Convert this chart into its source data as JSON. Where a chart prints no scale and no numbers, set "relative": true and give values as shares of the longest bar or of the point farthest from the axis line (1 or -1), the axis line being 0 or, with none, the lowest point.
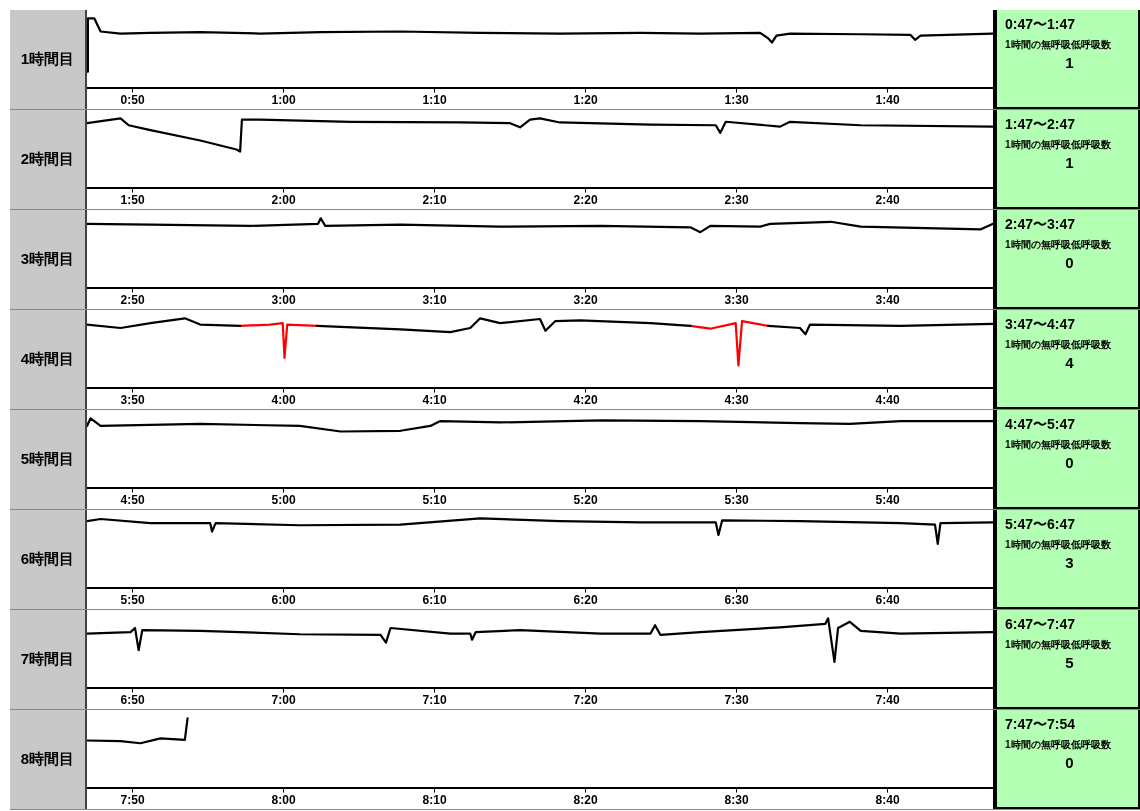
{
  "chart_data": [
    {
      "type": "line",
      "ylabel": "1時間目",
      "relative": true,
      "marker": "none",
      "xlim": [
        0.783,
        1.783
      ],
      "xticks": [
        {
          "value": 0.8333,
          "label": "0:50"
        },
        {
          "value": 1,
          "label": "1:00"
        },
        {
          "value": 1.1667,
          "label": "1:10"
        },
        {
          "value": 1.3333,
          "label": "1:20"
        },
        {
          "value": 1.5,
          "label": "1:30"
        },
        {
          "value": 1.6667,
          "label": "1:40"
        }
      ],
      "x": [
        0.783,
        0.784,
        0.791,
        0.798,
        0.82,
        0.853,
        0.908,
        0.974,
        1.041,
        1.129,
        1.217,
        1.305,
        1.394,
        1.46,
        1.526,
        1.535,
        1.539,
        1.544,
        1.559,
        1.637,
        1.692,
        1.697,
        1.703,
        1.783
      ],
      "series": [
        {
          "color": "#000000",
          "values": [
            0.23,
            1.0,
            1.0,
            0.81,
            0.78,
            0.79,
            0.8,
            0.78,
            0.8,
            0.81,
            0.79,
            0.78,
            0.79,
            0.78,
            0.79,
            0.71,
            0.65,
            0.75,
            0.78,
            0.77,
            0.76,
            0.69,
            0.75,
            0.78
          ]
        }
      ],
      "annotations": [
        "0:47〜1:47",
        "1時間の無呼吸低呼吸数",
        "1"
      ]
    },
    {
      "type": "line",
      "ylabel": "2時間目",
      "relative": true,
      "marker": "none",
      "xlim": [
        1.783,
        2.783
      ],
      "xticks": [
        {
          "value": 1.8333,
          "label": "1:50"
        },
        {
          "value": 2,
          "label": "2:00"
        },
        {
          "value": 2.1667,
          "label": "2:10"
        },
        {
          "value": 2.3333,
          "label": "2:20"
        },
        {
          "value": 2.5,
          "label": "2:30"
        },
        {
          "value": 2.6667,
          "label": "2:40"
        }
      ],
      "x": [
        1.783,
        1.82,
        1.829,
        1.853,
        1.908,
        1.948,
        1.952,
        1.954,
        1.974,
        2.074,
        2.195,
        2.25,
        2.261,
        2.272,
        2.283,
        2.305,
        2.405,
        2.477,
        2.482,
        2.488,
        2.548,
        2.559,
        2.637,
        2.783
      ],
      "series": [
        {
          "color": "#000000",
          "values": [
            0.93,
            1.0,
            0.9,
            0.83,
            0.68,
            0.55,
            0.52,
            0.98,
            0.98,
            0.95,
            0.94,
            0.93,
            0.87,
            0.98,
            1.0,
            0.94,
            0.91,
            0.9,
            0.79,
            0.95,
            0.88,
            0.95,
            0.9,
            0.88
          ]
        }
      ],
      "annotations": [
        "1:47〜2:47",
        "1時間の無呼吸低呼吸数",
        "1"
      ]
    },
    {
      "type": "line",
      "ylabel": "3時間目",
      "relative": true,
      "marker": "none",
      "xlim": [
        2.783,
        3.783
      ],
      "xticks": [
        {
          "value": 2.8333,
          "label": "2:50"
        },
        {
          "value": 3,
          "label": "3:00"
        },
        {
          "value": 3.1667,
          "label": "3:10"
        },
        {
          "value": 3.3333,
          "label": "3:20"
        },
        {
          "value": 3.5,
          "label": "3:30"
        },
        {
          "value": 3.6667,
          "label": "3:40"
        }
      ],
      "x": [
        2.783,
        2.853,
        2.963,
        3.038,
        3.041,
        3.046,
        3.129,
        3.239,
        3.35,
        3.449,
        3.46,
        3.471,
        3.526,
        3.537,
        3.604,
        3.637,
        3.769,
        3.783
      ],
      "series": [
        {
          "color": "#000000",
          "values": [
            0.92,
            0.91,
            0.89,
            0.92,
            1.0,
            0.89,
            0.91,
            0.88,
            0.89,
            0.87,
            0.8,
            0.89,
            0.88,
            0.92,
            0.95,
            0.88,
            0.84,
            0.92
          ]
        }
      ],
      "annotations": [
        "2:47〜3:47",
        "1時間の無呼吸低呼吸数",
        "0"
      ]
    },
    {
      "type": "line",
      "ylabel": "4時間目",
      "relative": true,
      "marker": "none",
      "xlim": [
        3.783,
        4.783
      ],
      "xticks": [
        {
          "value": 3.8333,
          "label": "3:50"
        },
        {
          "value": 4,
          "label": "4:00"
        },
        {
          "value": 4.1667,
          "label": "4:10"
        },
        {
          "value": 4.3333,
          "label": "4:20"
        },
        {
          "value": 4.5,
          "label": "4:30"
        },
        {
          "value": 4.6667,
          "label": "4:40"
        }
      ],
      "x": [
        3.783,
        3.82,
        3.853,
        3.891,
        3.908,
        3.952,
        3.985,
        3.999,
        4.001,
        4.004,
        4.037,
        4.129,
        4.184,
        4.206,
        4.217,
        4.239,
        4.283,
        4.289,
        4.3,
        4.327,
        4.405,
        4.449,
        4.471,
        4.499,
        4.502,
        4.506,
        4.535,
        4.57,
        4.576,
        4.581,
        4.681,
        4.783
      ],
      "series": [
        {
          "color": "#000000",
          "values": [
            0.91,
            0.86,
            0.93,
            1.0,
            0.91,
            0.89,
            null,
            null,
            null,
            null,
            0.89,
            0.84,
            0.8,
            0.86,
            1.0,
            0.93,
            0.99,
            0.82,
            0.96,
            0.97,
            0.93,
            0.89,
            null,
            null,
            null,
            null,
            0.89,
            0.86,
            0.77,
            0.91,
            0.89,
            0.92
          ]
        },
        {
          "color": "#ff0000",
          "values": [
            null,
            null,
            null,
            null,
            null,
            0.89,
            0.91,
            0.93,
            0.43,
            0.91,
            0.89,
            null,
            null,
            null,
            null,
            null,
            null,
            null,
            null,
            null,
            null,
            0.89,
            0.85,
            0.93,
            0.32,
            0.96,
            0.89,
            null,
            null,
            null,
            null,
            null
          ]
        }
      ],
      "annotations": [
        "3:47〜4:47",
        "1時間の無呼吸低呼吸数",
        "4"
      ]
    },
    {
      "type": "line",
      "ylabel": "5時間目",
      "relative": true,
      "marker": "none",
      "xlim": [
        4.783,
        5.783
      ],
      "xticks": [
        {
          "value": 4.8333,
          "label": "4:50"
        },
        {
          "value": 5,
          "label": "5:00"
        },
        {
          "value": 5.1667,
          "label": "5:10"
        },
        {
          "value": 5.3333,
          "label": "5:20"
        },
        {
          "value": 5.5,
          "label": "5:30"
        },
        {
          "value": 5.6667,
          "label": "5:40"
        }
      ],
      "x": [
        4.783,
        4.787,
        4.798,
        4.908,
        5.018,
        5.063,
        5.129,
        5.162,
        5.173,
        5.239,
        5.35,
        5.46,
        5.57,
        5.625,
        5.681,
        5.783
      ],
      "series": [
        {
          "color": "#000000",
          "values": [
            0.89,
            1.0,
            0.89,
            0.92,
            0.89,
            0.81,
            0.82,
            0.89,
            0.96,
            0.94,
            0.97,
            0.96,
            0.93,
            0.92,
            0.96,
            0.96
          ]
        }
      ],
      "annotations": [
        "4:47〜5:47",
        "1時間の無呼吸低呼吸数",
        "0"
      ]
    },
    {
      "type": "line",
      "ylabel": "6時間目",
      "relative": true,
      "marker": "none",
      "xlim": [
        5.783,
        6.783
      ],
      "xticks": [
        {
          "value": 5.8333,
          "label": "5:50"
        },
        {
          "value": 6,
          "label": "6:00"
        },
        {
          "value": 6.1667,
          "label": "6:10"
        },
        {
          "value": 6.3333,
          "label": "6:20"
        },
        {
          "value": 6.5,
          "label": "6:30"
        },
        {
          "value": 6.6667,
          "label": "6:40"
        }
      ],
      "x": [
        5.783,
        5.798,
        5.853,
        5.919,
        5.921,
        5.925,
        6.018,
        6.129,
        6.217,
        6.305,
        6.394,
        6.477,
        6.48,
        6.484,
        6.57,
        6.681,
        6.719,
        6.722,
        6.725,
        6.783
      ],
      "series": [
        {
          "color": "#000000",
          "values": [
            0.96,
            0.99,
            0.93,
            0.93,
            0.81,
            0.93,
            0.9,
            0.91,
            1.0,
            0.96,
            0.94,
            0.94,
            0.76,
            0.97,
            0.96,
            0.93,
            0.91,
            0.63,
            0.93,
            0.94
          ]
        }
      ],
      "annotations": [
        "5:47〜6:47",
        "1時間の無呼吸低呼吸数",
        "3"
      ]
    },
    {
      "type": "line",
      "ylabel": "7時間目",
      "relative": true,
      "marker": "none",
      "xlim": [
        6.783,
        7.783
      ],
      "xticks": [
        {
          "value": 6.8333,
          "label": "6:50"
        },
        {
          "value": 7,
          "label": "7:00"
        },
        {
          "value": 7.1667,
          "label": "7:10"
        },
        {
          "value": 7.3333,
          "label": "7:20"
        },
        {
          "value": 7.5,
          "label": "7:30"
        },
        {
          "value": 7.6667,
          "label": "7:40"
        }
      ],
      "x": [
        6.783,
        6.831,
        6.836,
        6.84,
        6.844,
        6.908,
        6.952,
        7.018,
        7.107,
        7.113,
        7.118,
        7.184,
        7.206,
        7.208,
        7.212,
        7.261,
        7.35,
        7.405,
        7.41,
        7.416,
        7.46,
        7.548,
        7.598,
        7.601,
        7.608,
        7.612,
        7.625,
        7.637,
        7.681,
        7.783
      ],
      "series": [
        {
          "color": "#000000",
          "values": [
            0.78,
            0.8,
            0.86,
            0.54,
            0.83,
            0.82,
            0.8,
            0.77,
            0.76,
            0.65,
            0.86,
            0.78,
            0.78,
            0.69,
            0.8,
            0.83,
            0.78,
            0.78,
            0.9,
            0.76,
            0.8,
            0.87,
            0.92,
            1.0,
            0.37,
            0.86,
            0.95,
            0.82,
            0.78,
            0.8
          ]
        }
      ],
      "annotations": [
        "6:47〜7:47",
        "1時間の無呼吸低呼吸数",
        "5"
      ]
    },
    {
      "type": "line",
      "ylabel": "8時間目",
      "relative": true,
      "marker": "none",
      "xlim": [
        7.783,
        8.783
      ],
      "xticks": [
        {
          "value": 7.8333,
          "label": "7:50"
        },
        {
          "value": 8,
          "label": "8:00"
        },
        {
          "value": 8.1667,
          "label": "8:10"
        },
        {
          "value": 8.3333,
          "label": "8:20"
        },
        {
          "value": 8.5,
          "label": "8:30"
        },
        {
          "value": 8.6667,
          "label": "8:40"
        }
      ],
      "x": [
        7.783,
        7.82,
        7.842,
        7.864,
        7.891,
        7.894
      ],
      "series": [
        {
          "color": "#000000",
          "values": [
            0.68,
            0.67,
            0.64,
            0.71,
            0.69,
            1.0
          ]
        }
      ],
      "annotations": [
        "7:47〜7:54",
        "1時間の無呼吸低呼吸数",
        "0"
      ]
    }
  ]
}
